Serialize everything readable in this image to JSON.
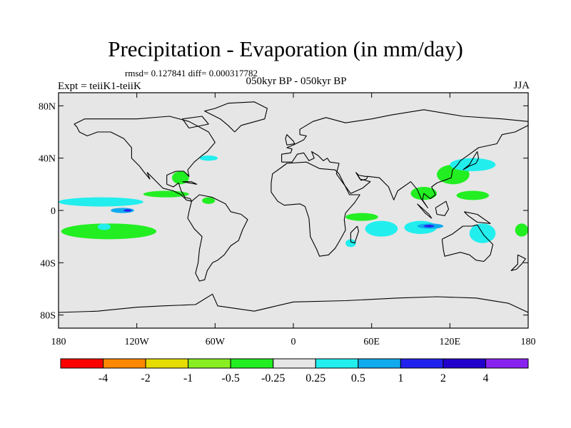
{
  "title": "Precipitation - Evaporation (in mm/day)",
  "stats": "rmsd= 0.127841 diff= 0.000317782",
  "experiment": "Expt = teiiK1-teiiK",
  "subtitle": "050kyr BP - 050kyr BP",
  "season": "JJA",
  "chart_data": {
    "type": "heatmap",
    "projection": "equirectangular",
    "xlim": [
      -180,
      180
    ],
    "ylim": [
      -90,
      90
    ],
    "x_tick_labels": [
      "180",
      "120W",
      "60W",
      "0",
      "60E",
      "120E",
      "180"
    ],
    "x_tick_values": [
      -180,
      -120,
      -60,
      0,
      60,
      120,
      180
    ],
    "y_tick_labels": [
      "80N",
      "40N",
      "0",
      "40S",
      "80S"
    ],
    "y_tick_values": [
      80,
      40,
      0,
      -40,
      -80
    ],
    "background_color": "#e6e6e6",
    "colorbar": {
      "labels": [
        "-4",
        "-2",
        "-1",
        "-0.5",
        "-0.25",
        "0.25",
        "0.5",
        "1",
        "2",
        "4"
      ],
      "levels": [
        -4,
        -2,
        -1,
        -0.5,
        -0.25,
        0.25,
        0.5,
        1,
        2,
        4
      ],
      "colors": [
        "#ff0000",
        "#ff8800",
        "#e6dc00",
        "#88ee22",
        "#22ee22",
        "#e6e6e6",
        "#22eeee",
        "#11aaee",
        "#2222ee",
        "#2200cc",
        "#8822ee"
      ]
    },
    "anomaly_regions": [
      {
        "category": "-0.5 to -0.25",
        "color": "#22ee22",
        "lon": [
          -178,
          -105
        ],
        "lat": [
          -10,
          -22
        ]
      },
      {
        "category": "-0.5 to -0.25",
        "color": "#22ee22",
        "lon": [
          -115,
          -80
        ],
        "lat": [
          15,
          10
        ]
      },
      {
        "category": "-0.5 to -0.25",
        "color": "#22ee22",
        "lon": [
          -93,
          -80
        ],
        "lat": [
          30,
          20
        ]
      },
      {
        "category": "-0.5 to -0.25",
        "color": "#22ee22",
        "lon": [
          -70,
          -60
        ],
        "lat": [
          10,
          5
        ]
      },
      {
        "category": "-0.5 to -0.25",
        "color": "#22ee22",
        "lon": [
          40,
          65
        ],
        "lat": [
          -2,
          -8
        ]
      },
      {
        "category": "-0.5 to -0.25",
        "color": "#22ee22",
        "lon": [
          90,
          110
        ],
        "lat": [
          18,
          8
        ]
      },
      {
        "category": "-0.5 to -0.25",
        "color": "#22ee22",
        "lon": [
          110,
          135
        ],
        "lat": [
          35,
          20
        ]
      },
      {
        "category": "-0.5 to -0.25",
        "color": "#22ee22",
        "lon": [
          125,
          150
        ],
        "lat": [
          15,
          8
        ]
      },
      {
        "category": "-0.5 to -0.25",
        "color": "#22ee22",
        "lon": [
          170,
          180
        ],
        "lat": [
          -10,
          -20
        ]
      },
      {
        "category": "0.25 to 0.5",
        "color": "#22eeee",
        "lon": [
          -180,
          -115
        ],
        "lat": [
          10,
          3
        ]
      },
      {
        "category": "0.25 to 0.5",
        "color": "#22eeee",
        "lon": [
          -150,
          -140
        ],
        "lat": [
          -10,
          -15
        ]
      },
      {
        "category": "0.25 to 0.5",
        "color": "#22eeee",
        "lon": [
          -72,
          -58
        ],
        "lat": [
          42,
          38
        ]
      },
      {
        "category": "0.25 to 0.5",
        "color": "#22eeee",
        "lon": [
          40,
          48
        ],
        "lat": [
          -22,
          -28
        ]
      },
      {
        "category": "0.25 to 0.5",
        "color": "#22eeee",
        "lon": [
          55,
          80
        ],
        "lat": [
          -8,
          -20
        ]
      },
      {
        "category": "0.25 to 0.5",
        "color": "#22eeee",
        "lon": [
          85,
          110
        ],
        "lat": [
          -8,
          -18
        ]
      },
      {
        "category": "0.25 to 0.5",
        "color": "#22eeee",
        "lon": [
          120,
          155
        ],
        "lat": [
          40,
          30
        ]
      },
      {
        "category": "0.25 to 0.5",
        "color": "#22eeee",
        "lon": [
          135,
          155
        ],
        "lat": [
          -10,
          -25
        ]
      },
      {
        "category": "0.5 to 1",
        "color": "#11aaee",
        "lon": [
          -140,
          -122
        ],
        "lat": [
          2,
          -2
        ]
      },
      {
        "category": "0.5 to 1",
        "color": "#11aaee",
        "lon": [
          95,
          115
        ],
        "lat": [
          -10,
          -14
        ]
      },
      {
        "category": "1 to 2",
        "color": "#2222ee",
        "lon": [
          -130,
          -124
        ],
        "lat": [
          1,
          -1
        ]
      },
      {
        "category": "1 to 2",
        "color": "#2222ee",
        "lon": [
          100,
          108
        ],
        "lat": [
          -11,
          -13
        ]
      }
    ]
  }
}
